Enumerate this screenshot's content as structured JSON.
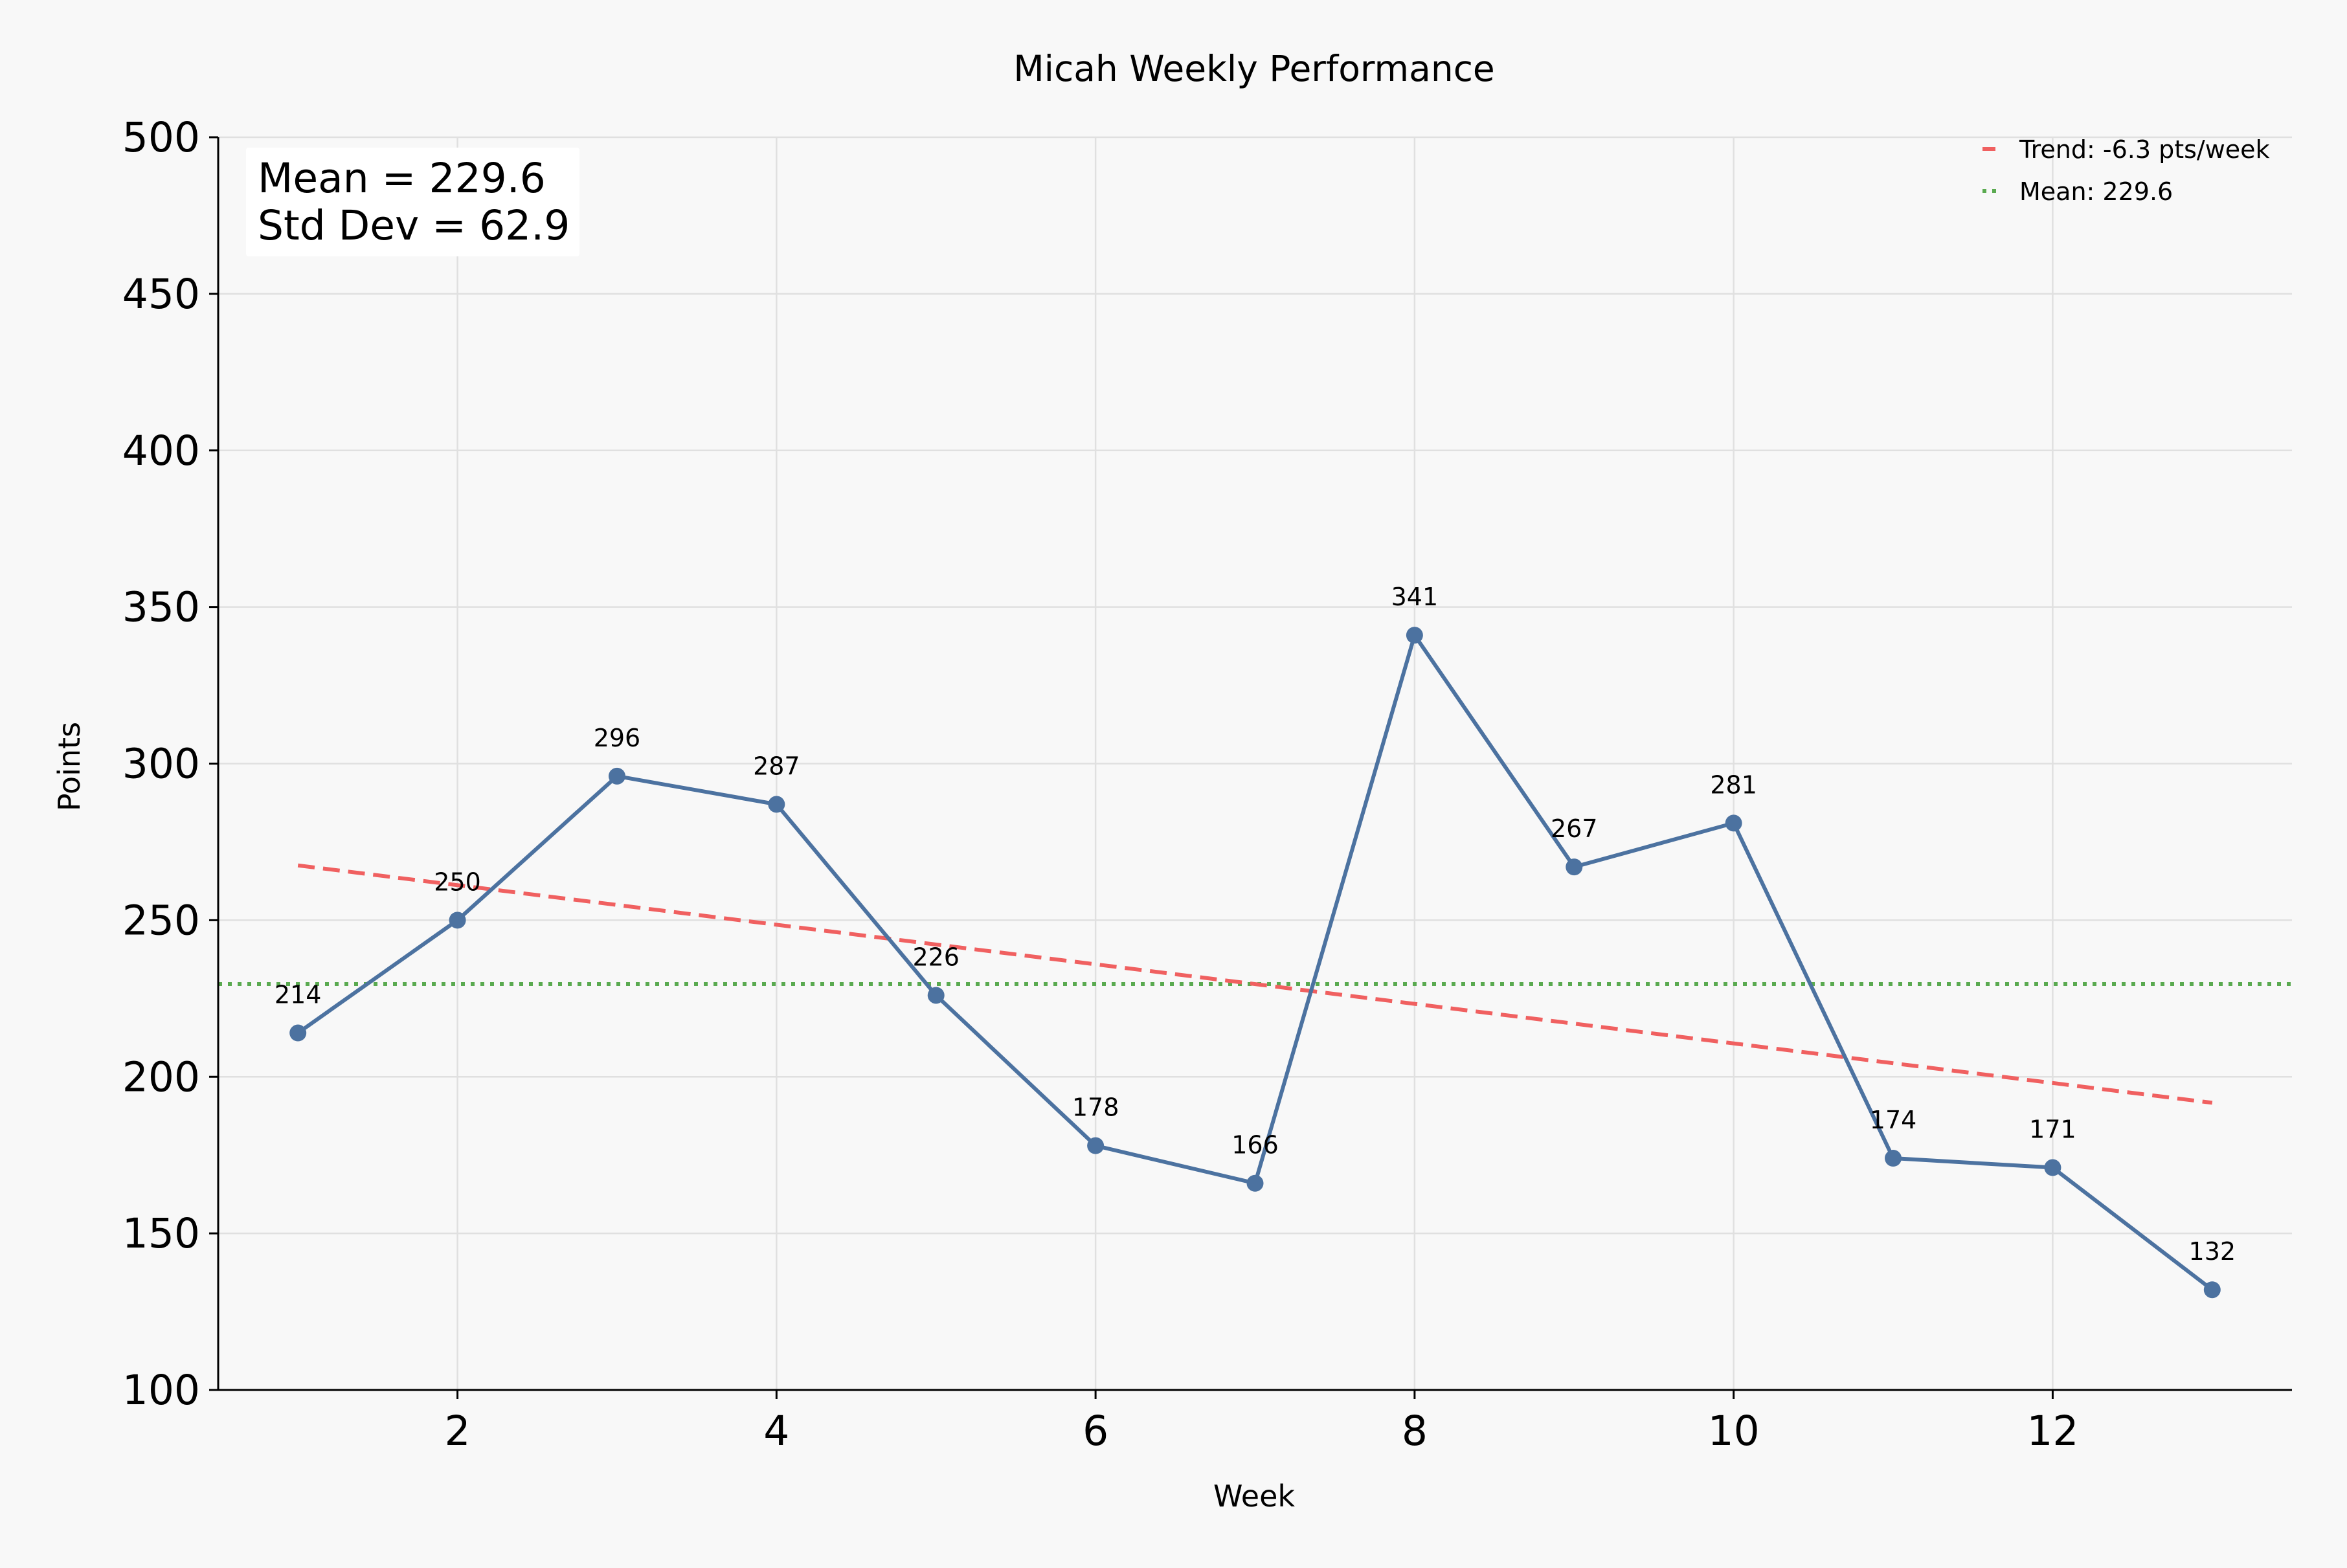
{
  "chart_data": {
    "type": "line",
    "title": "Micah Weekly Performance",
    "xlabel": "Week",
    "ylabel": "Points",
    "xlim": [
      0.5,
      13.5
    ],
    "ylim": [
      100,
      500
    ],
    "xticks": [
      2,
      4,
      6,
      8,
      10,
      12
    ],
    "yticks": [
      100,
      150,
      200,
      250,
      300,
      350,
      400,
      450,
      500
    ],
    "grid": true,
    "legend_position": "top-right",
    "series": [
      {
        "x": [
          1,
          2,
          3,
          4,
          5,
          6,
          7,
          8,
          9,
          10,
          11,
          12,
          13
        ],
        "values": [
          214,
          250,
          296,
          287,
          226,
          178,
          166,
          341,
          267,
          281,
          174,
          171,
          132
        ],
        "data_labels": [
          "214",
          "250",
          "296",
          "287",
          "226",
          "178",
          "166",
          "341",
          "267",
          "281",
          "174",
          "171",
          "132"
        ],
        "color": "#4c72a0"
      }
    ],
    "trend": {
      "legend": "Trend: -6.3 pts/week",
      "x": [
        1,
        13
      ],
      "y": [
        267.5,
        191.7
      ],
      "color": "#f06060",
      "style": "dashed"
    },
    "mean_line": {
      "legend": "Mean: 229.6",
      "y": 229.6,
      "color": "#5aaa50",
      "style": "dotted"
    },
    "stats_box": [
      "Mean = 229.6",
      "Std Dev = 62.9"
    ]
  }
}
